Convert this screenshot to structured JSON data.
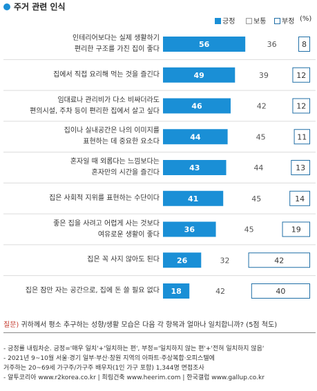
{
  "title": "주거 관련 인식",
  "legend": {
    "positive": "긍정",
    "neutral": "보통",
    "negative": "부정",
    "unit": "(%)"
  },
  "colors": {
    "positive": "#1a8fd6",
    "neutral": "#ffffff",
    "negative": "#ffffff",
    "negative_border": "#1f6ea6",
    "title_dot": "#1a8fd6"
  },
  "chart_data": {
    "type": "bar",
    "stacked": true,
    "orientation": "horizontal",
    "xlim": [
      0,
      100
    ],
    "categories": [
      [
        "인테리어보다는 실제 생활하기",
        "편리한 구조를 가진 집이 좋다"
      ],
      [
        "집에서 직접 요리해 먹는 것을 즐긴다"
      ],
      [
        "임대료나 관리비가 다소 비싸더라도",
        "편의시설, 주차 등이 편리한 집에서 살고 싶다"
      ],
      [
        "집이나 실내공간은 나의 이미지를",
        "표현하는 데 중요한 요소다"
      ],
      [
        "혼자일 때 외롭다는 느낌보다는",
        "혼자만의 시간을 즐긴다"
      ],
      [
        "집은 사회적 지위를 표현하는 수단이다"
      ],
      [
        "좋은 집을 사려고 어렵게 사는 것보다",
        "여유로운 생활이 좋다"
      ],
      [
        "집은 꼭 사지 않아도 된다"
      ],
      [
        "집은 잠만 자는 공간으로, 집에 돈 쓸 필요 없다"
      ]
    ],
    "series": [
      {
        "name": "긍정",
        "values": [
          56,
          49,
          46,
          44,
          43,
          41,
          36,
          26,
          18
        ]
      },
      {
        "name": "보통",
        "values": [
          36,
          39,
          42,
          45,
          44,
          45,
          45,
          32,
          42
        ]
      },
      {
        "name": "부정",
        "values": [
          8,
          12,
          12,
          11,
          13,
          14,
          19,
          42,
          40
        ]
      }
    ]
  },
  "question": {
    "key": "질문)",
    "text": "귀하께서 평소 추구하는 성향/생활 모습은 다음 각 항목과 얼마나 일치합니까? (5점 척도)"
  },
  "notes": [
    "- 긍정률 내림차순. 긍정='매우 일치'+'일치하는 편', 부정='일치하지 않는 편'+'전혀 일치하지 않음'",
    "- 2021년 9~10월 서울·경기 일부·부산·창원 지역의 아파트·주상복합·오피스텔에",
    "   거주하는 20~69세 가구주/가구주 배우자(1인 가구 포함) 1,344명 면접조사",
    "- 알투코리아 www.r2korea.co.kr | 희림건축 www.heerim.com | 한국갤럽 www.gallup.co.kr"
  ]
}
